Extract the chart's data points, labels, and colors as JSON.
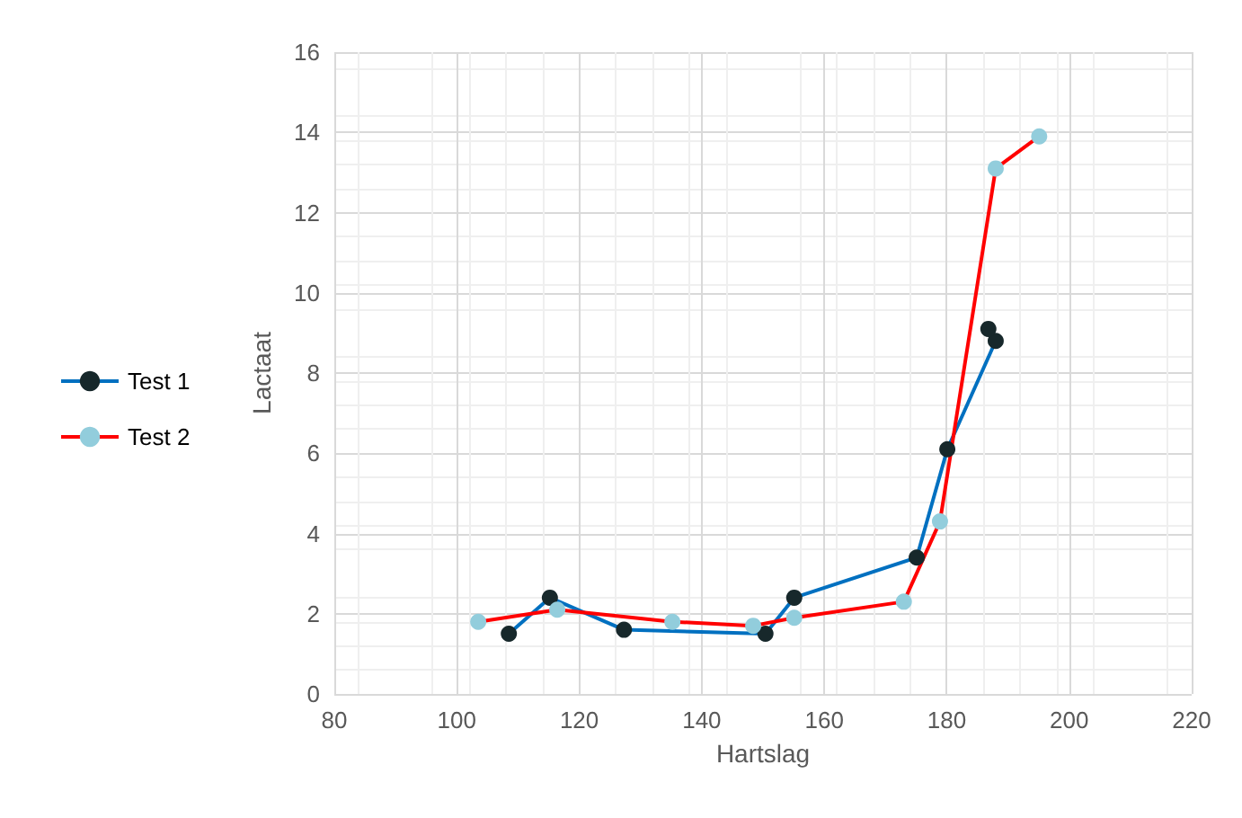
{
  "chart_data": {
    "type": "line",
    "xlabel": "Hartslag",
    "ylabel": "Lactaat",
    "xlim": [
      80,
      220
    ],
    "xticks": [
      80,
      100,
      120,
      140,
      160,
      180,
      200,
      220
    ],
    "ylim": [
      0,
      16
    ],
    "yticks": [
      0,
      2,
      4,
      6,
      8,
      10,
      12,
      14,
      16
    ],
    "grid": true,
    "legend": "left",
    "marker": "circle",
    "line_style": "solid",
    "series": [
      {
        "name": "Test 1",
        "color": "#0070c0",
        "colors": [
          "#17282b",
          "#17282b",
          "#17282b",
          "#17282b",
          "#17282b",
          "#17282b",
          "#17282b",
          "#17282b",
          "#17282b"
        ],
        "x": [
          108.5,
          115.2,
          127.3,
          150.4,
          155.1,
          175.1,
          180.1,
          188,
          186.8
        ],
        "values": [
          1.5,
          2.4,
          1.6,
          1.5,
          2.4,
          3.4,
          6.1,
          8.8,
          9.1
        ]
      },
      {
        "name": "Test 2",
        "color": "#ff0000",
        "colors": [
          "#92cddc",
          "#92cddc",
          "#92cddc",
          "#92cddc",
          "#92cddc",
          "#92cddc",
          "#92cddc",
          "#92cddc",
          "#92cddc"
        ],
        "x": [
          103.5,
          116.4,
          135.2,
          148.4,
          155.1,
          173,
          178.9,
          188,
          195.1
        ],
        "values": [
          1.8,
          2.1,
          1.8,
          1.7,
          1.9,
          2.3,
          4.3,
          13.1,
          13.9
        ]
      }
    ]
  }
}
